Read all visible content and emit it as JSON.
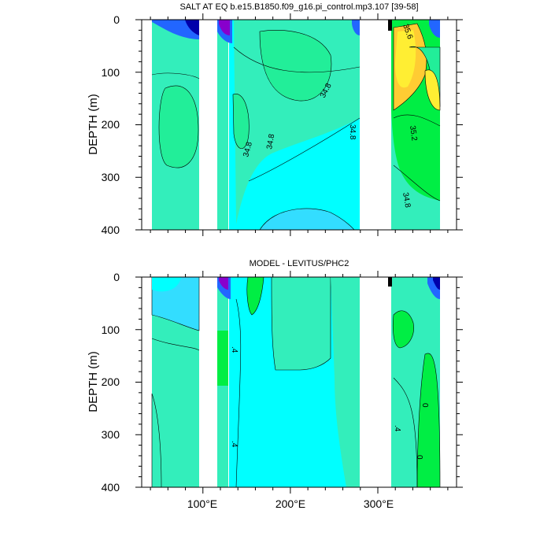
{
  "chart_data": [
    {
      "type": "heatmap",
      "title": "SALT AT EQ b.e15.B1850.f09_g16.pi_control.mp3.107 [39-58]",
      "ylabel": "DEPTH (m)",
      "yticks": [
        "0",
        "100",
        "200",
        "300",
        "400"
      ],
      "ylim": [
        0,
        400
      ],
      "y_reversed": true,
      "xlim": [
        30,
        390
      ],
      "contour_labels": [
        "34.8",
        "34.8",
        "34.8",
        "34.8",
        "35.6",
        "35.2",
        "34.8"
      ]
    },
    {
      "type": "heatmap",
      "title": "MODEL - LEVITUS/PHC2",
      "ylabel": "DEPTH (m)",
      "yticks": [
        "0",
        "100",
        "200",
        "300",
        "400"
      ],
      "ylim": [
        0,
        400
      ],
      "y_reversed": true,
      "xlim": [
        30,
        390
      ],
      "xticks": [
        "100°E",
        "200°E",
        "300°E"
      ],
      "contour_labels": [
        ".4",
        ".4",
        "0",
        ".4",
        "0"
      ]
    }
  ],
  "colors": {
    "cyan": "#00ffff",
    "aquamarine": "#33eebb",
    "mint": "#22ee99",
    "green": "#00ee44",
    "yellow": "#ffee33",
    "orange": "#ffcc33",
    "sky": "#33ddff",
    "blue": "#2266ff",
    "navy": "#0000aa",
    "purple": "#8800cc"
  }
}
